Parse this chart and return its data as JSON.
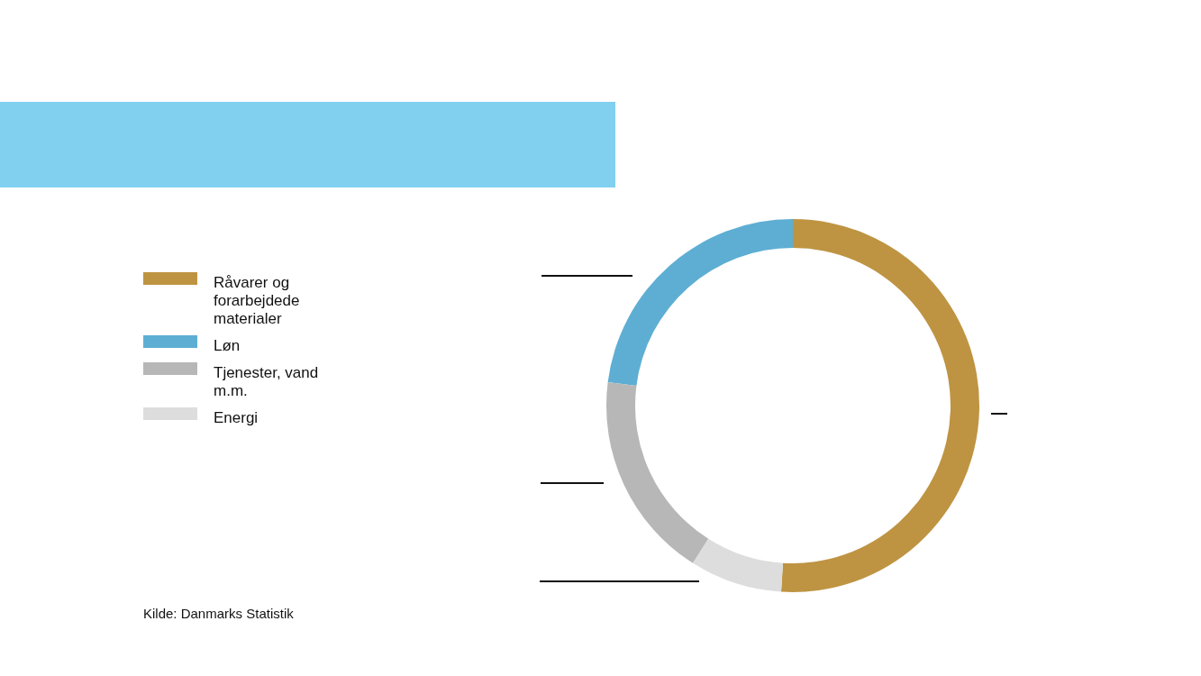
{
  "chart_data": {
    "type": "donut",
    "categories": [
      "Råvarer og forarbejdede materialer",
      "Løn",
      "Tjenester, vand m.m.",
      "Energi"
    ],
    "values": [
      51,
      23,
      18,
      8
    ],
    "colors": [
      "#be9442",
      "#5eaed3",
      "#b7b7b7",
      "#dddddd"
    ],
    "legend": "left",
    "annotations": [
      "Kilde: Danmarks Statistik"
    ]
  }
}
